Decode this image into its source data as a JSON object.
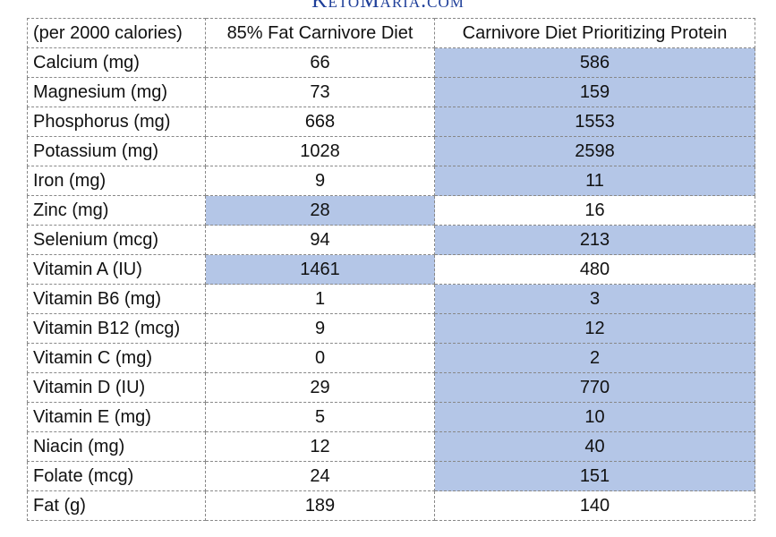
{
  "header": {
    "title": "KetoMaria.com"
  },
  "table": {
    "columns": [
      "(per 2000 calories)",
      "85% Fat Carnivore Diet",
      "Carnivore Diet Prioritizing Protein"
    ],
    "rows": [
      [
        "Calcium (mg)",
        66,
        586
      ],
      [
        "Magnesium (mg)",
        73,
        159
      ],
      [
        "Phosphorus (mg)",
        668,
        1553
      ],
      [
        "Potassium (mg)",
        1028,
        2598
      ],
      [
        "Iron (mg)",
        9,
        11
      ],
      [
        "Zinc (mg)",
        28,
        16
      ],
      [
        "Selenium (mcg)",
        94,
        213
      ],
      [
        "Vitamin A (IU)",
        1461,
        480
      ],
      [
        "Vitamin B6 (mg)",
        1,
        3
      ],
      [
        "Vitamin B12 (mcg)",
        9,
        12
      ],
      [
        "Vitamin C (mg)",
        0,
        2
      ],
      [
        "Vitamin D (IU)",
        29,
        770
      ],
      [
        "Vitamin E (mg)",
        5,
        10
      ],
      [
        "Niacin (mg)",
        12,
        40
      ],
      [
        "Folate (mcg)",
        24,
        151
      ],
      [
        "Fat (g)",
        189,
        140
      ]
    ],
    "highlight": [
      2,
      2,
      2,
      2,
      2,
      1,
      2,
      1,
      2,
      2,
      2,
      2,
      2,
      2,
      2,
      null
    ],
    "highlight_color": "#b4c6e7"
  }
}
